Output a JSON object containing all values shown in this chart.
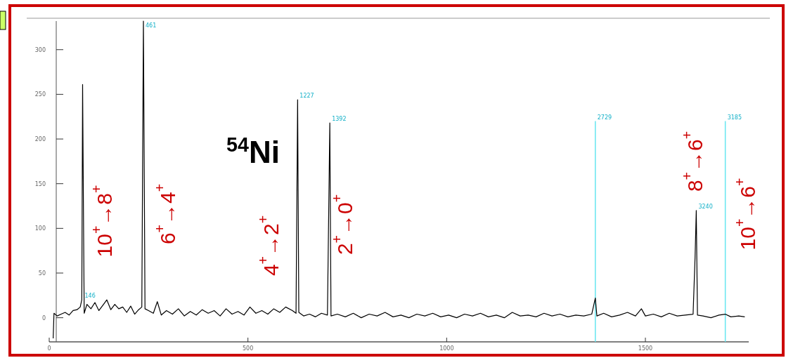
{
  "chart_data": {
    "type": "line",
    "title": "$^{54}$Ni",
    "xlim": [
      0,
      1760
    ],
    "xticks": [
      0,
      500,
      1000,
      1500
    ],
    "ylim": [
      -27,
      332
    ],
    "yticks": [
      0,
      50,
      100,
      150,
      200,
      250,
      300
    ],
    "marker": "none",
    "line_style": "solid",
    "series": [
      {
        "color": "#000000",
        "x": [
          10,
          12,
          20,
          30,
          40,
          50,
          60,
          70,
          78,
          82,
          84,
          86,
          88,
          95,
          105,
          115,
          125,
          135,
          145,
          155,
          165,
          175,
          185,
          195,
          205,
          215,
          225,
          233,
          237,
          241,
          250,
          262,
          272,
          282,
          295,
          310,
          325,
          340,
          355,
          370,
          385,
          400,
          415,
          430,
          445,
          460,
          475,
          490,
          505,
          520,
          535,
          550,
          565,
          580,
          595,
          612,
          621,
          625,
          628,
          640,
          655,
          670,
          685,
          700,
          706,
          709,
          725,
          745,
          765,
          785,
          805,
          825,
          845,
          865,
          885,
          905,
          925,
          945,
          965,
          985,
          1005,
          1025,
          1045,
          1065,
          1085,
          1105,
          1125,
          1145,
          1165,
          1185,
          1205,
          1225,
          1245,
          1265,
          1285,
          1305,
          1325,
          1345,
          1365,
          1374,
          1378,
          1395,
          1415,
          1435,
          1455,
          1475,
          1490,
          1500,
          1520,
          1540,
          1560,
          1580,
          1600,
          1620,
          1625,
          1628,
          1631,
          1645,
          1665,
          1685,
          1701,
          1715,
          1735,
          1750
        ],
        "values": [
          -23,
          5,
          2,
          4,
          6,
          3,
          8,
          9,
          12,
          20,
          261,
          130,
          5,
          15,
          10,
          17,
          8,
          14,
          20,
          9,
          15,
          10,
          12,
          6,
          13,
          4,
          9,
          12,
          332,
          10,
          8,
          5,
          18,
          3,
          8,
          4,
          10,
          2,
          7,
          3,
          9,
          5,
          8,
          2,
          10,
          4,
          7,
          3,
          12,
          5,
          8,
          4,
          10,
          6,
          12,
          8,
          5,
          244,
          6,
          2,
          4,
          1,
          5,
          3,
          218,
          2,
          4,
          1,
          5,
          0,
          4,
          2,
          6,
          1,
          3,
          0,
          4,
          2,
          5,
          1,
          3,
          0,
          4,
          2,
          5,
          1,
          3,
          0,
          6,
          2,
          3,
          1,
          5,
          2,
          4,
          1,
          3,
          2,
          4,
          22,
          2,
          5,
          1,
          3,
          6,
          2,
          10,
          2,
          4,
          1,
          5,
          2,
          3,
          4,
          68,
          120,
          3,
          2,
          0,
          3,
          4,
          1,
          2,
          1
        ]
      }
    ],
    "ref_lines": [
      {
        "axis": "x",
        "value": 1374,
        "color": "#66e6f0"
      },
      {
        "axis": "x",
        "value": 1701,
        "color": "#66e6f0"
      }
    ],
    "annotations": [
      {
        "text": "146",
        "x": 84,
        "y": 20
      },
      {
        "text": "461",
        "x": 237,
        "y": 332
      },
      {
        "text": "1227",
        "x": 625,
        "y": 244
      },
      {
        "text": "1392",
        "x": 706,
        "y": 218
      },
      {
        "text": "2729",
        "x": 1374,
        "y": 220
      },
      {
        "text": "3185",
        "x": 1701,
        "y": 220
      },
      {
        "text": "3240",
        "x": 1628,
        "y": 120
      },
      "10$^{+}$→8$^{+}$",
      "6$^{+}$→4$^{+}$",
      "4$^{+}$→2$^{+}$",
      "2$^{+}$→0$^{+}$",
      "8$^{+}$→6$^{+}$",
      "10$^{+}$→6$^{+}$"
    ]
  }
}
